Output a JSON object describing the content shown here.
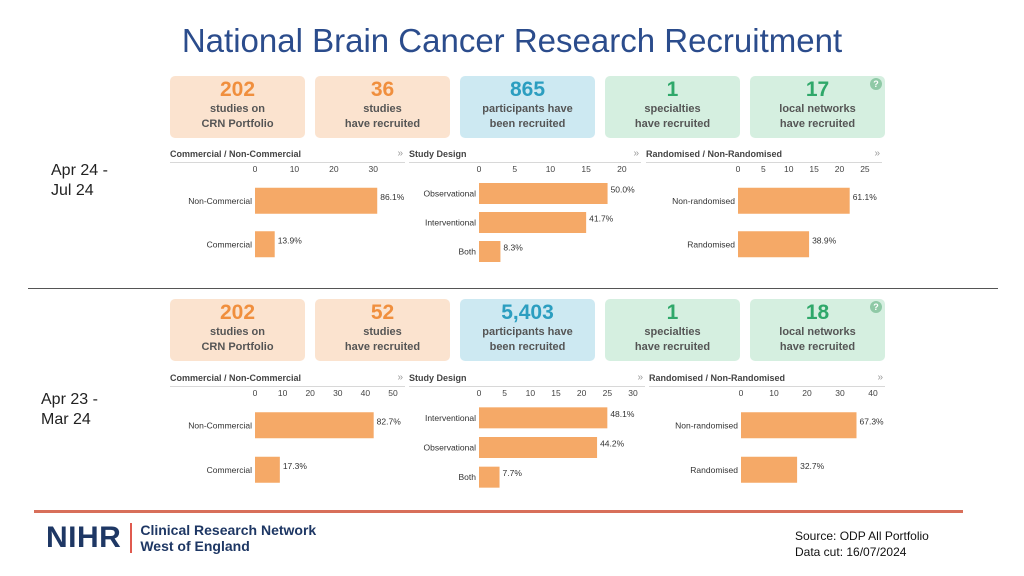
{
  "title": "National Brain Cancer Research Recruitment",
  "colors": {
    "bar": "#f5a967",
    "title": "#2b4c8c",
    "orange_tile_bg": "#fbe3cf",
    "orange_tile_num": "#f08f3e",
    "blue_tile_bg": "#cde9f2",
    "blue_tile_num": "#2c9ec0",
    "green_tile_bg": "#d5efe0",
    "green_tile_num": "#2fa86a",
    "footer_rule": "#d86f5a"
  },
  "periods": [
    {
      "label": "Apr 24 -\nJul 24",
      "tiles": [
        {
          "number": "202",
          "label": "studies on\nCRN Portfolio",
          "theme": "orange"
        },
        {
          "number": "36",
          "label": "studies\nhave recruited",
          "theme": "orange"
        },
        {
          "number": "865",
          "label": "participants have\nbeen recruited",
          "theme": "blue"
        },
        {
          "number": "1",
          "label": "specialties\nhave recruited",
          "theme": "green"
        },
        {
          "number": "17",
          "label": "local networks\nhave recruited",
          "theme": "green"
        }
      ]
    },
    {
      "label": "Apr 23 -\nMar 24",
      "tiles": [
        {
          "number": "202",
          "label": "studies on\nCRN Portfolio",
          "theme": "orange"
        },
        {
          "number": "52",
          "label": "studies\nhave recruited",
          "theme": "orange"
        },
        {
          "number": "5,403",
          "label": "participants have\nbeen recruited",
          "theme": "blue"
        },
        {
          "number": "1",
          "label": "specialties\nhave recruited",
          "theme": "green"
        },
        {
          "number": "18",
          "label": "local networks\nhave recruited",
          "theme": "green"
        }
      ]
    }
  ],
  "chart_data": [
    {
      "type": "bar",
      "orientation": "horizontal",
      "period": "Apr 24 - Jul 24",
      "title": "Commercial / Non-Commercial",
      "categories": [
        "Non-Commercial",
        "Commercial"
      ],
      "values": [
        31,
        5
      ],
      "value_labels": [
        "86.1%",
        "13.9%"
      ],
      "xlim": [
        0,
        35
      ],
      "ticks": [
        0,
        10,
        20,
        30
      ]
    },
    {
      "type": "bar",
      "orientation": "horizontal",
      "period": "Apr 24 - Jul 24",
      "title": "Study Design",
      "categories": [
        "Observational",
        "Interventional",
        "Both"
      ],
      "values": [
        18,
        15,
        3
      ],
      "value_labels": [
        "50.0%",
        "41.7%",
        "8.3%"
      ],
      "xlim": [
        0,
        21
      ],
      "ticks": [
        0,
        5,
        10,
        15,
        20
      ]
    },
    {
      "type": "bar",
      "orientation": "horizontal",
      "period": "Apr 24 - Jul 24",
      "title": "Randomised / Non-Randomised",
      "categories": [
        "Non-randomised",
        "Randomised"
      ],
      "values": [
        22,
        14
      ],
      "value_labels": [
        "61.1%",
        "38.9%"
      ],
      "xlim": [
        0,
        26
      ],
      "ticks": [
        0,
        5,
        10,
        15,
        20,
        25
      ]
    },
    {
      "type": "bar",
      "orientation": "horizontal",
      "period": "Apr 23 - Mar 24",
      "title": "Commercial / Non-Commercial",
      "categories": [
        "Non-Commercial",
        "Commercial"
      ],
      "values": [
        43,
        9
      ],
      "value_labels": [
        "82.7%",
        "17.3%"
      ],
      "xlim": [
        0,
        50
      ],
      "ticks": [
        0,
        10,
        20,
        30,
        40,
        50
      ]
    },
    {
      "type": "bar",
      "orientation": "horizontal",
      "period": "Apr 23 - Mar 24",
      "title": "Study Design",
      "categories": [
        "Interventional",
        "Observational",
        "Both"
      ],
      "values": [
        25,
        23,
        4
      ],
      "value_labels": [
        "48.1%",
        "44.2%",
        "7.7%"
      ],
      "xlim": [
        0,
        30
      ],
      "ticks": [
        0,
        5,
        10,
        15,
        20,
        25,
        30
      ]
    },
    {
      "type": "bar",
      "orientation": "horizontal",
      "period": "Apr 23 - Mar 24",
      "title": "Randomised / Non-Randomised",
      "categories": [
        "Non-randomised",
        "Randomised"
      ],
      "values": [
        35,
        17
      ],
      "value_labels": [
        "67.3%",
        "32.7%"
      ],
      "xlim": [
        0,
        40
      ],
      "ticks": [
        0,
        10,
        20,
        30,
        40
      ]
    }
  ],
  "footer": {
    "logo_word": "NIHR",
    "logo_sub": "Clinical Research Network\nWest of England",
    "source": "Source: ODP All Portfolio\nData cut: 16/07/2024"
  }
}
